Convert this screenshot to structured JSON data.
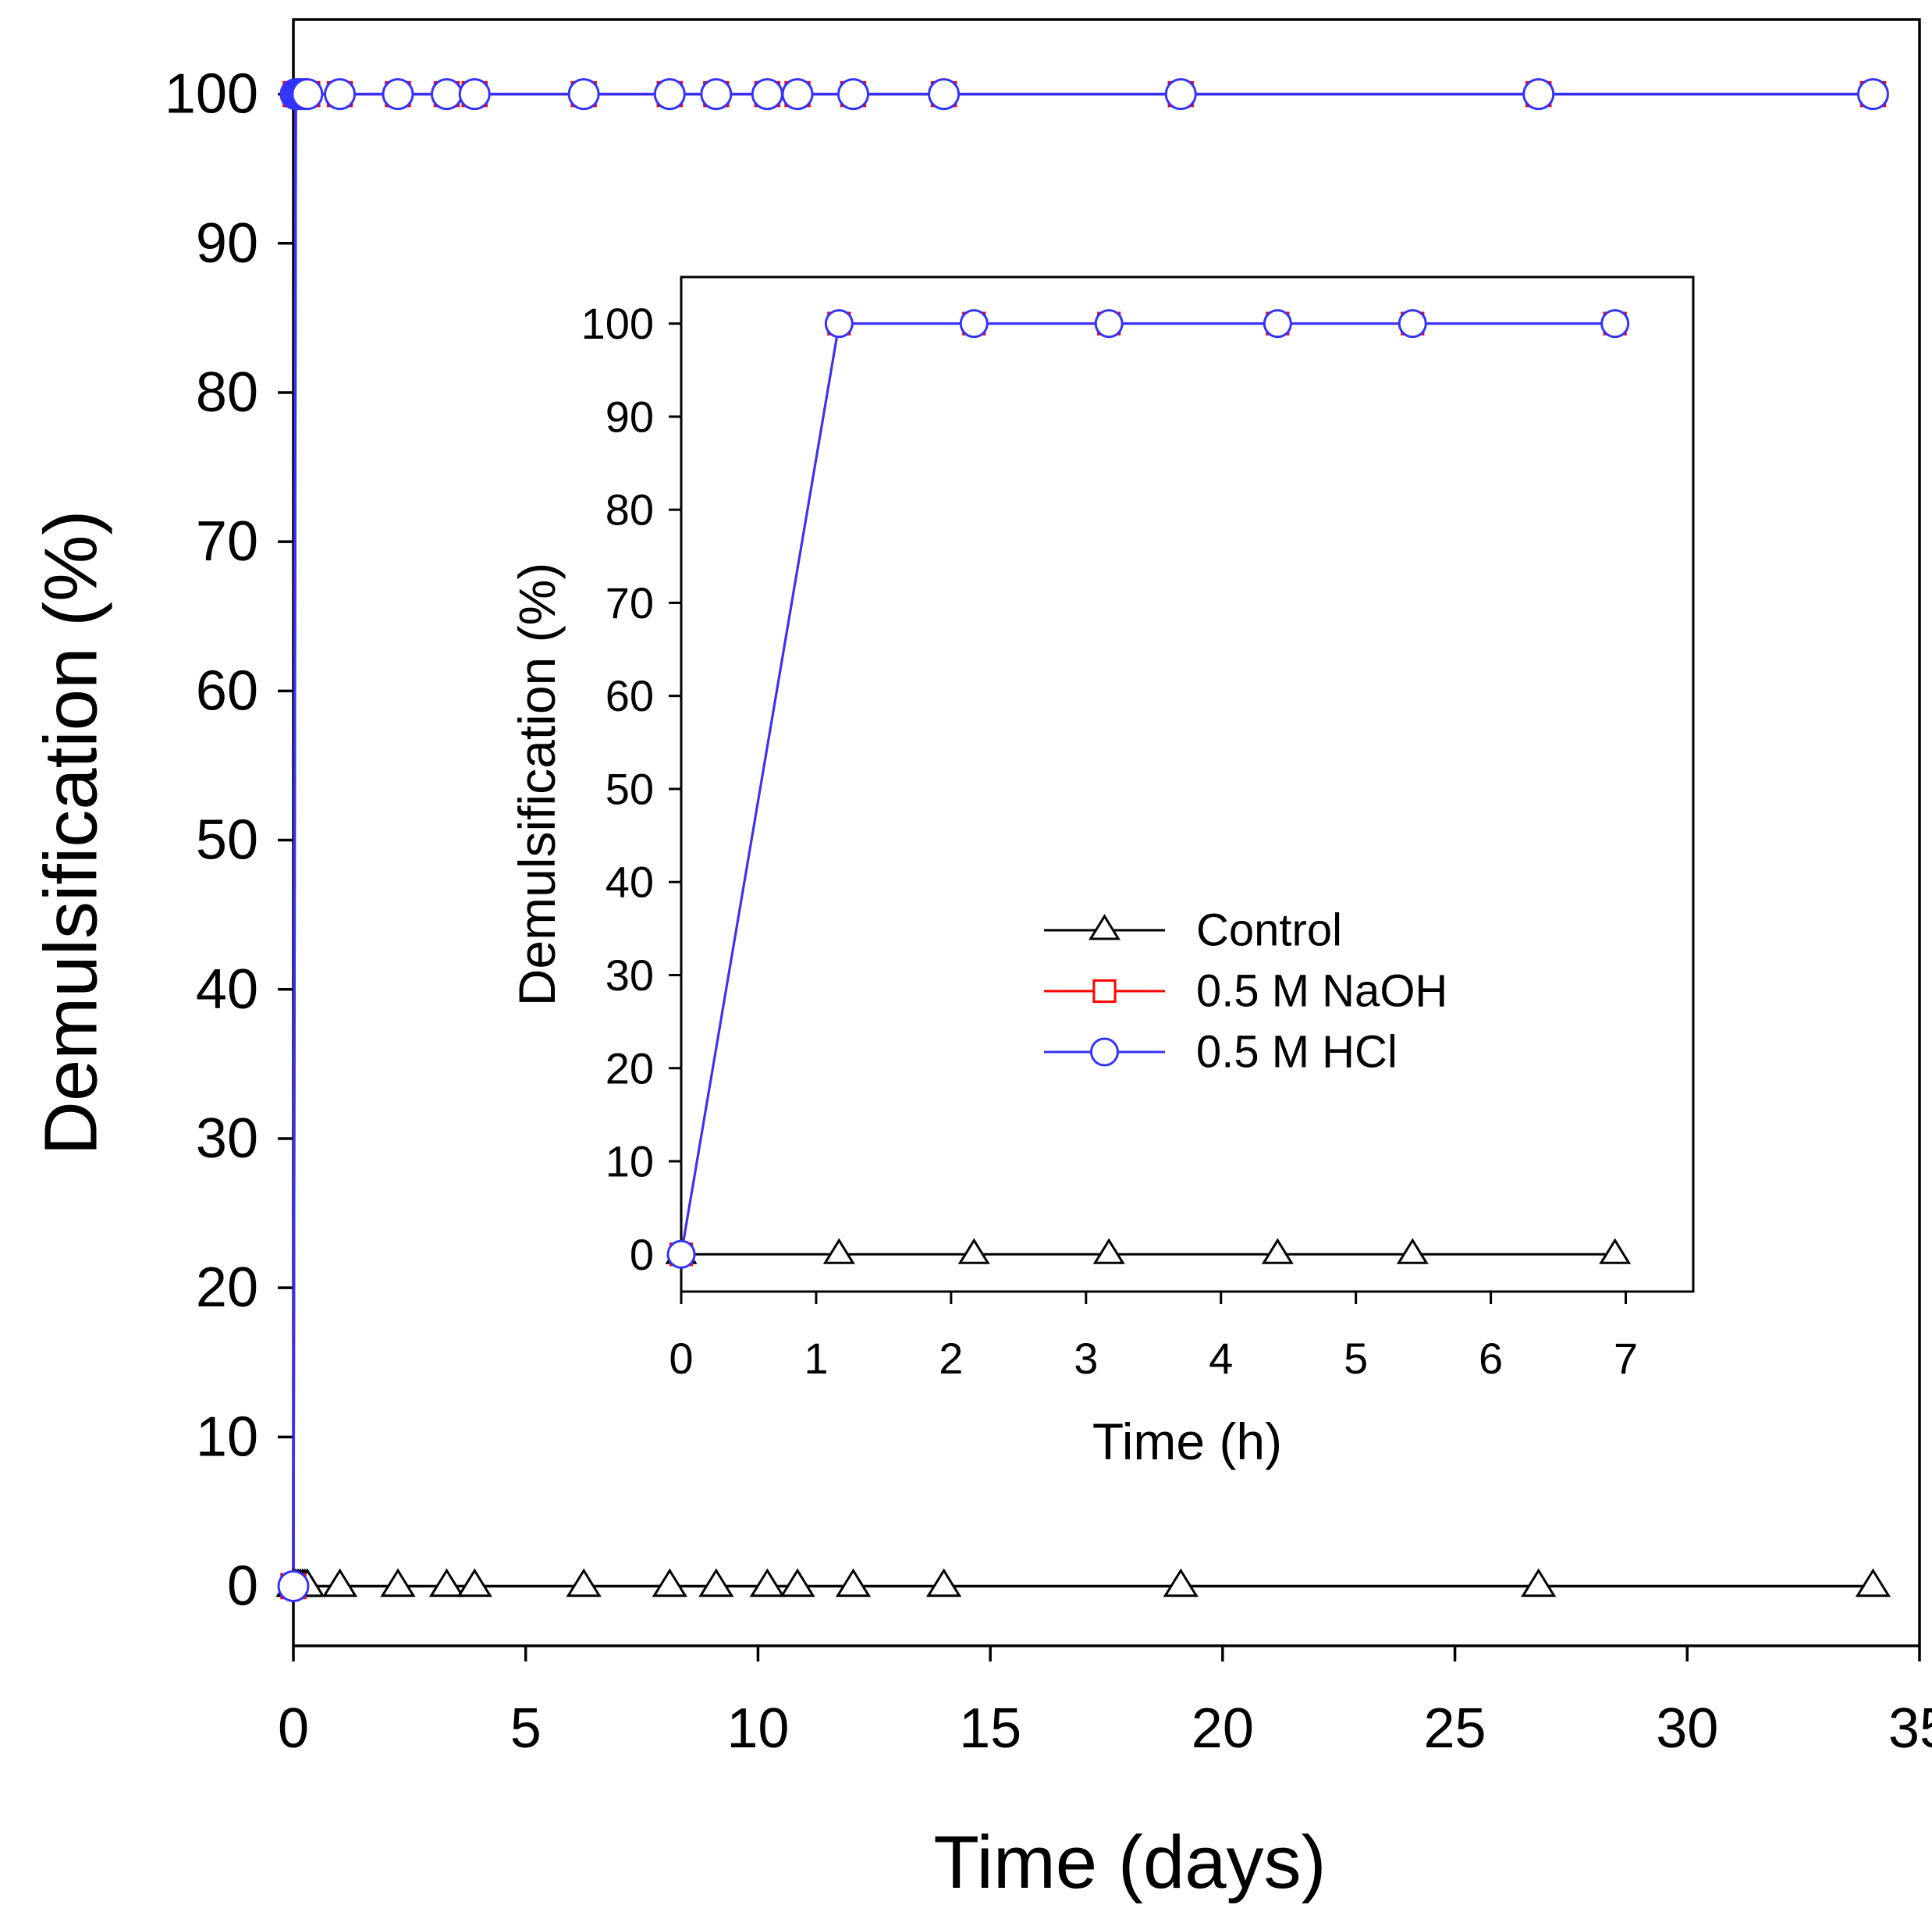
{
  "chart_data": [
    {
      "type": "line",
      "xlabel": "Time (days)",
      "ylabel": "Demulsification (%)",
      "xlim": [
        0,
        35
      ],
      "ylim": [
        -4,
        105
      ],
      "xticks": [
        0,
        5,
        10,
        15,
        20,
        25,
        30,
        35
      ],
      "yticks": [
        0,
        10,
        20,
        30,
        40,
        50,
        60,
        70,
        80,
        90,
        100
      ],
      "grid": false,
      "series": [
        {
          "name": "Control",
          "color": "#000000",
          "marker": "triangle",
          "x": [
            0,
            0.05,
            0.1,
            0.15,
            0.2,
            0.25,
            0.3,
            1,
            2.25,
            3.3,
            3.9,
            6.25,
            8.1,
            9.1,
            10.2,
            10.85,
            12.05,
            14,
            19.1,
            26.8,
            34
          ],
          "y": [
            0,
            0,
            0,
            0,
            0,
            0,
            0,
            0,
            0,
            0,
            0,
            0,
            0,
            0,
            0,
            0,
            0,
            0,
            0,
            0,
            0
          ]
        },
        {
          "name": "0.5 M NaOH",
          "color": "#ff0000",
          "marker": "square",
          "x": [
            0,
            0.05,
            0.1,
            0.15,
            0.2,
            0.25,
            0.3,
            1,
            2.25,
            3.3,
            3.9,
            6.25,
            8.1,
            9.1,
            10.2,
            10.85,
            12.05,
            14,
            19.1,
            26.8,
            34
          ],
          "y": [
            0,
            100,
            100,
            100,
            100,
            100,
            100,
            100,
            100,
            100,
            100,
            100,
            100,
            100,
            100,
            100,
            100,
            100,
            100,
            100,
            100
          ]
        },
        {
          "name": "0.5 M HCl",
          "color": "#3333ff",
          "marker": "circle",
          "x": [
            0,
            0.05,
            0.1,
            0.15,
            0.2,
            0.25,
            0.3,
            1,
            2.25,
            3.3,
            3.9,
            6.25,
            8.1,
            9.1,
            10.2,
            10.85,
            12.05,
            14,
            19.1,
            26.8,
            34
          ],
          "y": [
            0,
            100,
            100,
            100,
            100,
            100,
            100,
            100,
            100,
            100,
            100,
            100,
            100,
            100,
            100,
            100,
            100,
            100,
            100,
            100,
            100
          ]
        }
      ]
    },
    {
      "type": "line",
      "xlabel": "Time (h)",
      "ylabel": "Demulsification (%)",
      "xlim": [
        0,
        7.5
      ],
      "ylim": [
        -4,
        105
      ],
      "xticks": [
        0,
        1,
        2,
        3,
        4,
        5,
        6,
        7
      ],
      "yticks": [
        0,
        10,
        20,
        30,
        40,
        50,
        60,
        70,
        80,
        90,
        100
      ],
      "grid": false,
      "legend": {
        "placement": "center-right",
        "entries": [
          "Control",
          "0.5 M NaOH",
          "0.5 M HCl"
        ]
      },
      "series": [
        {
          "name": "Control",
          "color": "#000000",
          "marker": "triangle",
          "x": [
            0,
            1.17,
            2.17,
            3.17,
            4.42,
            5.42,
            6.92
          ],
          "y": [
            0,
            0,
            0,
            0,
            0,
            0,
            0
          ]
        },
        {
          "name": "0.5 M NaOH",
          "color": "#ff0000",
          "marker": "square",
          "x": [
            0,
            1.17,
            2.17,
            3.17,
            4.42,
            5.42,
            6.92
          ],
          "y": [
            0,
            100,
            100,
            100,
            100,
            100,
            100
          ]
        },
        {
          "name": "0.5 M HCl",
          "color": "#3333ff",
          "marker": "circle",
          "x": [
            0,
            1.17,
            2.17,
            3.17,
            4.42,
            5.42,
            6.92
          ],
          "y": [
            0,
            100,
            100,
            100,
            100,
            100,
            100
          ]
        }
      ]
    }
  ]
}
